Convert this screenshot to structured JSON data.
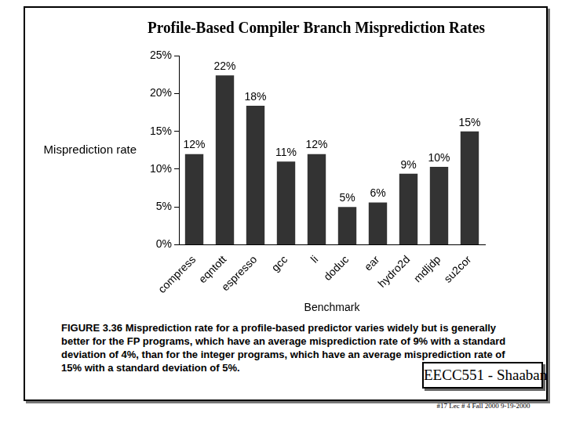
{
  "chart_data": {
    "type": "bar",
    "title": "Profile-Based Compiler Branch Misprediction Rates",
    "x_label": "Benchmark",
    "y_label": "Misprediction rate",
    "categories": [
      "compress",
      "eqntott",
      "espresso",
      "gcc",
      "li",
      "doduc",
      "ear",
      "hydro2d",
      "mdljdp",
      "su2cor"
    ],
    "values": [
      12,
      22.4,
      18.4,
      11,
      12,
      5,
      5.6,
      9.4,
      10.3,
      15
    ],
    "value_labels": [
      "12%",
      "22%",
      "18%",
      "11%",
      "12%",
      "5%",
      "6%",
      "9%",
      "10%",
      "15%"
    ],
    "data_labels": true,
    "color": "#333333",
    "ylim": [
      0,
      25
    ],
    "yticks": [
      {
        "value": 0,
        "label": "0%"
      },
      {
        "value": 5,
        "label": "5%"
      },
      {
        "value": 10,
        "label": "10%"
      },
      {
        "value": 15,
        "label": "15%"
      },
      {
        "value": 20,
        "label": "20%"
      },
      {
        "value": 25,
        "label": "25%"
      }
    ],
    "grid": false
  },
  "caption": "FIGURE 3.36 Misprediction rate for a profile-based predictor varies widely but is generally better for the FP programs, which have an average misprediction rate of 9% with a standard deviation of 4%, than for the integer programs, which have an average misprediction rate of 15% with a standard deviation of 5%.",
  "footer": {
    "label": "EECC551 - Shaaban",
    "note": "#17 Lec # 4 Fall 2000 9-19-2000"
  }
}
